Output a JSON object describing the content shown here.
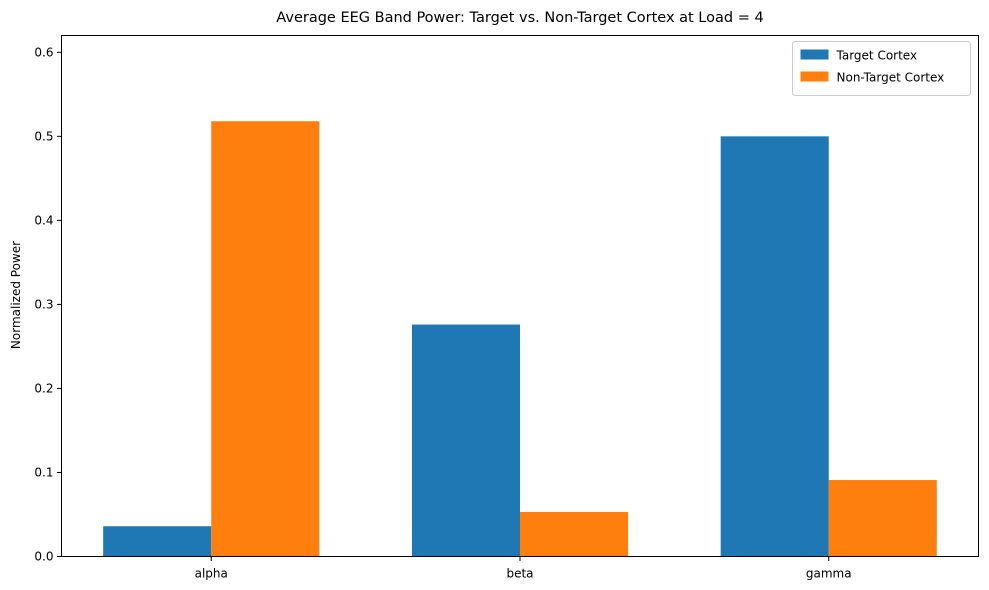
{
  "chart_data": {
    "type": "bar",
    "title": "Average EEG Band Power: Target vs. Non-Target Cortex at Load = 4",
    "xlabel": "",
    "ylabel": "Normalized Power",
    "categories": [
      "alpha",
      "beta",
      "gamma"
    ],
    "series": [
      {
        "name": "Target Cortex",
        "values": [
          0.036,
          0.276,
          0.5
        ],
        "color": "#1f77b4"
      },
      {
        "name": "Non-Target Cortex",
        "values": [
          0.518,
          0.053,
          0.091
        ],
        "color": "#ff7f0e"
      }
    ],
    "ylim": [
      0,
      0.62
    ],
    "yticks": [
      "0.0",
      "0.1",
      "0.2",
      "0.3",
      "0.4",
      "0.5",
      "0.6"
    ],
    "grid": false,
    "legend_position": "top-right"
  }
}
